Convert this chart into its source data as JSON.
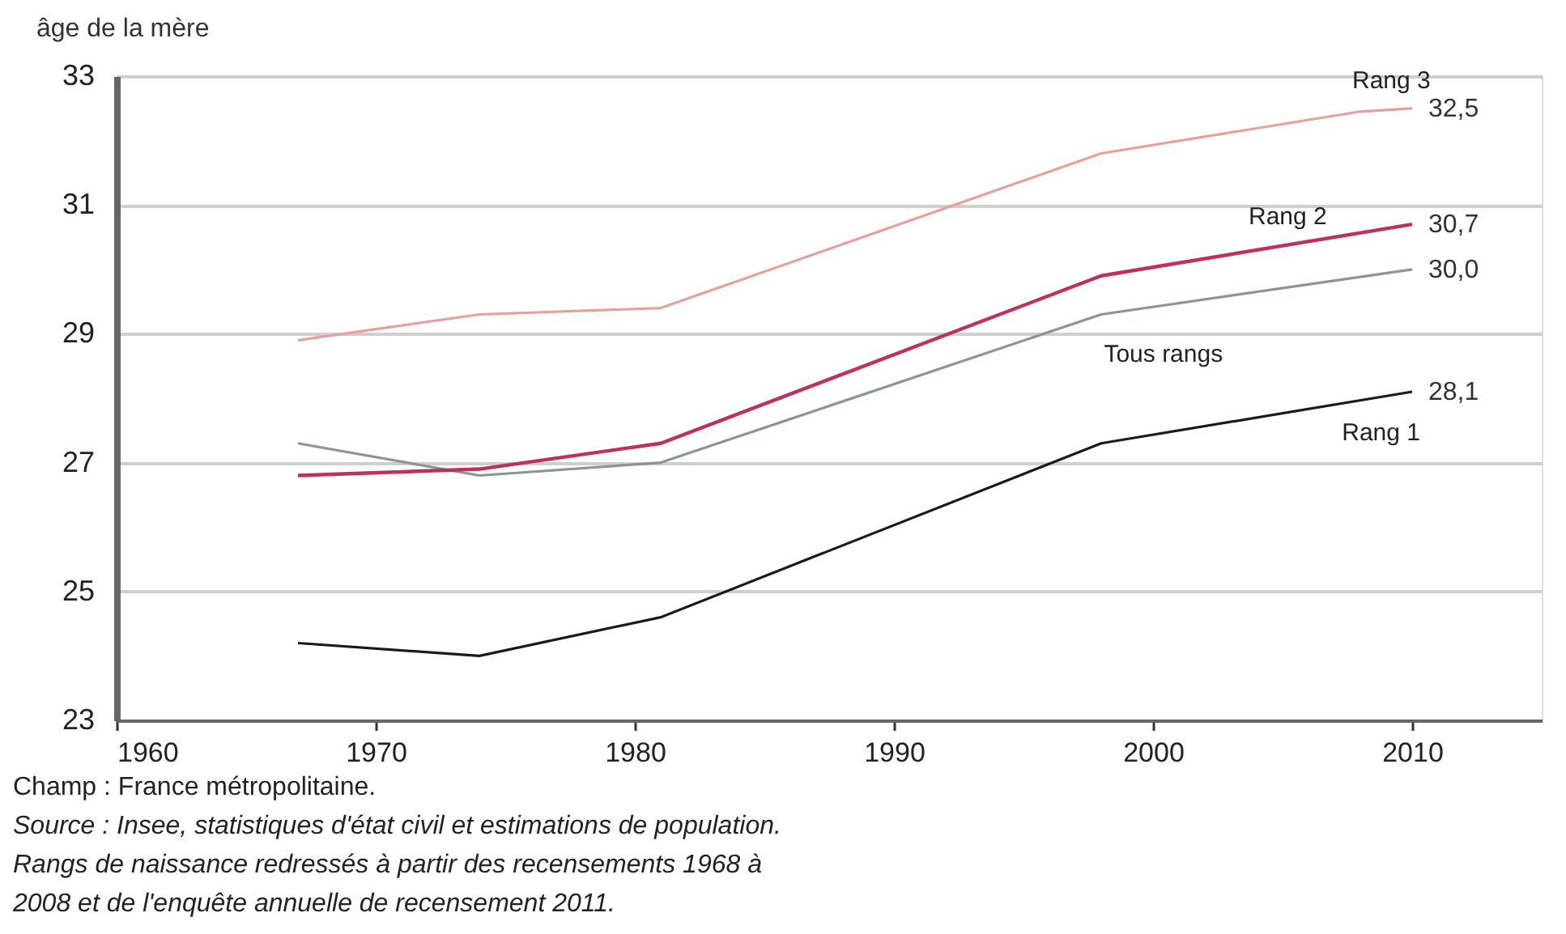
{
  "chart_data": {
    "type": "line",
    "ylabel": "âge de la mère",
    "x": [
      1967,
      1974,
      1981,
      1998,
      2010
    ],
    "series": [
      {
        "name": "Rang 1",
        "color": "#1a1a1a",
        "values": [
          24.2,
          24.0,
          24.6,
          27.3,
          28.1
        ],
        "value_labels": [
          null,
          null,
          null,
          null,
          "28,1"
        ]
      },
      {
        "name": "Tous rangs",
        "color": "#8a9696",
        "values": [
          27.3,
          26.8,
          27.0,
          29.3,
          30.0
        ],
        "value_labels": [
          null,
          null,
          null,
          null,
          "30,0"
        ]
      },
      {
        "name": "Rang 2",
        "color": "#c0305a",
        "values": [
          26.8,
          26.9,
          27.3,
          29.9,
          30.7
        ],
        "value_labels": [
          null,
          null,
          null,
          null,
          "30,7"
        ]
      },
      {
        "name": "Rang 3",
        "color": "#e8a09a",
        "x": [
          1967,
          1974,
          1981,
          1998,
          2008,
          2010
        ],
        "values": [
          28.9,
          29.3,
          29.4,
          31.8,
          32.45,
          32.5
        ],
        "value_labels": [
          null,
          null,
          null,
          null,
          null,
          "32,5"
        ]
      }
    ],
    "xlim": [
      1960,
      2015
    ],
    "xticks": [
      1960,
      1970,
      1980,
      1990,
      2000,
      2010
    ],
    "ylim": [
      23,
      33
    ],
    "yticks": [
      23,
      25,
      27,
      29,
      31,
      33
    ],
    "grid": "y",
    "legend": false,
    "marker": "none",
    "line_style": "solid",
    "annotations": [
      "Champ : France métropolitaine.",
      "Source : Insee, statistiques d'état civil et estimations de population.",
      "Rangs de naissance redressés à partir des recensements 1968 à",
      "2008 et de l'enquête annuelle de recensement 2011."
    ]
  }
}
